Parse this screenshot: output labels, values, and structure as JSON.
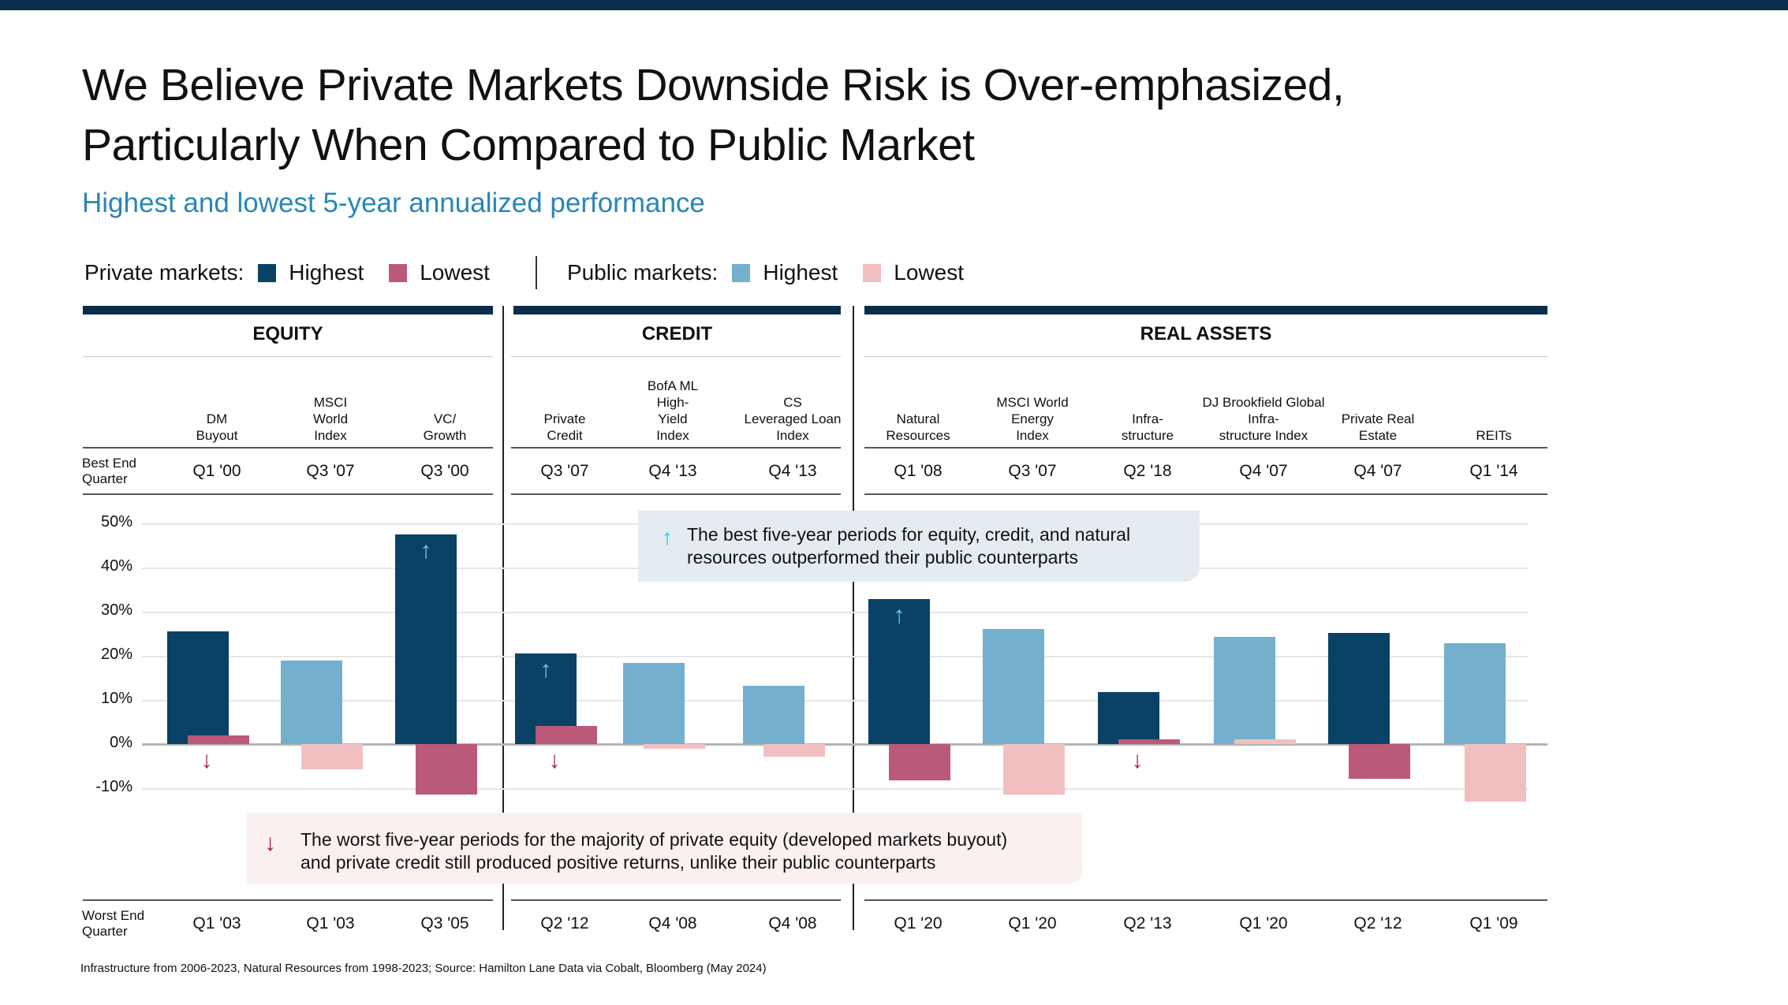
{
  "header": {
    "title_line1": "We Believe Private Markets Downside Risk is Over-emphasized,",
    "title_line2": "Particularly When Compared to Public Market",
    "subtitle": "Highest and lowest 5-year annualized performance"
  },
  "legend": {
    "private_label": "Private markets:",
    "public_label": "Public markets:",
    "highest": "Highest",
    "lowest": "Lowest"
  },
  "colors": {
    "private_highest": "#0a4266",
    "private_lowest": "#bb5a78",
    "public_highest": "#74b0cd",
    "public_lowest": "#f2bfc0",
    "up_arrow": "#6fc6ee",
    "down_arrow": "#a31d52",
    "brand_navy": "#0b2c4a",
    "subtitle_blue": "#2a86b7"
  },
  "sections": [
    {
      "name": "EQUITY"
    },
    {
      "name": "CREDIT"
    },
    {
      "name": "REAL ASSETS"
    }
  ],
  "row_labels": {
    "best_line1": "Best End",
    "best_line2": "Quarter",
    "worst_line1": "Worst End",
    "worst_line2": "Quarter"
  },
  "callouts": {
    "best": {
      "icon": "arrow-up-icon",
      "line1": "The best five-year periods for equity, credit, and natural",
      "line2": "resources outperformed their public counterparts"
    },
    "worst": {
      "icon": "arrow-down-icon",
      "line1": "The worst five-year periods for the majority of private equity (developed markets buyout)",
      "line2": "and private credit still produced positive returns, unlike their public counterparts"
    }
  },
  "footnote": "Infrastructure from 2006-2023, Natural Resources from 1998-2023; Source: Hamilton Lane Data via Cobalt, Bloomberg (May 2024)",
  "chart_data": {
    "type": "bar",
    "title": "Highest and lowest 5-year annualized performance",
    "ylabel": "",
    "xlabel": "",
    "ylim": [
      -10,
      50
    ],
    "yticks": [
      "50%",
      "40%",
      "30%",
      "20%",
      "10%",
      "0%",
      "-10%"
    ],
    "ytick_values": [
      50,
      40,
      30,
      20,
      10,
      0,
      -10
    ],
    "grid": true,
    "legend_position": "top-left",
    "categories": [
      {
        "section": "EQUITY",
        "label_lines": [
          "DM",
          "Buyout"
        ],
        "market": "private",
        "highest": 25.6,
        "lowest": 1.9,
        "best_q": "Q1 '00",
        "worst_q": "Q1 '03",
        "up_arrow": false,
        "down_arrow": true
      },
      {
        "section": "EQUITY",
        "label_lines": [
          "MSCI",
          "World",
          "Index"
        ],
        "market": "public",
        "highest": 18.9,
        "lowest": -5.7,
        "best_q": "Q3 '07",
        "worst_q": "Q1 '03",
        "up_arrow": false,
        "down_arrow": false
      },
      {
        "section": "EQUITY",
        "label_lines": [
          "VC/",
          "Growth"
        ],
        "market": "private",
        "highest": 47.5,
        "lowest": -11.5,
        "best_q": "Q3 '00",
        "worst_q": "Q3 '05",
        "up_arrow": true,
        "down_arrow": false
      },
      {
        "section": "CREDIT",
        "label_lines": [
          "Private",
          "Credit"
        ],
        "market": "private",
        "highest": 20.5,
        "lowest": 4.1,
        "best_q": "Q3 '07",
        "worst_q": "Q2 '12",
        "up_arrow": true,
        "down_arrow": true
      },
      {
        "section": "CREDIT",
        "label_lines": [
          "BofA ML",
          "High-",
          "Yield",
          "Index"
        ],
        "market": "public",
        "highest": 18.4,
        "lowest": -1.1,
        "best_q": "Q4 '13",
        "worst_q": "Q4 '08",
        "up_arrow": false,
        "down_arrow": false
      },
      {
        "section": "CREDIT",
        "label_lines": [
          "CS",
          "Leveraged Loan",
          "Index"
        ],
        "market": "public",
        "highest": 13.2,
        "lowest": -2.9,
        "best_q": "Q4 '13",
        "worst_q": "Q4 '08",
        "up_arrow": false,
        "down_arrow": false
      },
      {
        "section": "REAL ASSETS",
        "label_lines": [
          "Natural",
          "Resources"
        ],
        "market": "private",
        "highest": 32.8,
        "lowest": -8.2,
        "best_q": "Q1 '08",
        "worst_q": "Q1 '20",
        "up_arrow": true,
        "down_arrow": false
      },
      {
        "section": "REAL ASSETS",
        "label_lines": [
          "MSCI World",
          "Energy",
          "Index"
        ],
        "market": "public",
        "highest": 26.0,
        "lowest": -11.4,
        "best_q": "Q3 '07",
        "worst_q": "Q1 '20",
        "up_arrow": false,
        "down_arrow": false
      },
      {
        "section": "REAL ASSETS",
        "label_lines": [
          "Infra-",
          "structure"
        ],
        "market": "private",
        "highest": 11.7,
        "lowest": 1.0,
        "best_q": "Q2 '18",
        "worst_q": "Q2 '13",
        "up_arrow": false,
        "down_arrow": true
      },
      {
        "section": "REAL ASSETS",
        "label_lines": [
          "DJ Brookfield Global",
          "Infra-",
          "structure Index"
        ],
        "market": "public",
        "highest": 24.3,
        "lowest": 1.0,
        "best_q": "Q4 '07",
        "worst_q": "Q1 '20",
        "up_arrow": false,
        "down_arrow": false
      },
      {
        "section": "REAL ASSETS",
        "label_lines": [
          "Private Real",
          "Estate"
        ],
        "market": "private",
        "highest": 25.1,
        "lowest": -7.9,
        "best_q": "Q4 '07",
        "worst_q": "Q2 '12",
        "up_arrow": false,
        "down_arrow": false
      },
      {
        "section": "REAL ASSETS",
        "label_lines": [
          "REITs"
        ],
        "market": "public",
        "highest": 22.8,
        "lowest": -13.0,
        "best_q": "Q1 '14",
        "worst_q": "Q1 '09",
        "up_arrow": false,
        "down_arrow": false
      }
    ]
  }
}
